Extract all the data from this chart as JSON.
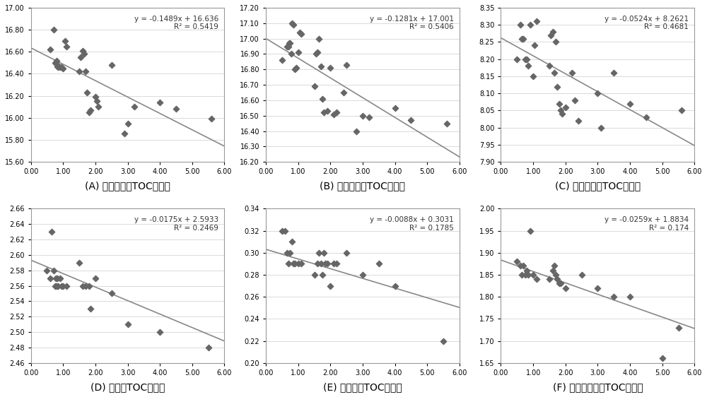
{
  "panels": [
    {
      "label": "(A) 拉梅系数与TOC交汇图",
      "equation": "y = -0.1489x + 16.636",
      "r2": "R² = 0.5419",
      "slope": -0.1489,
      "intercept": 16.636,
      "xlim": [
        0.0,
        6.0
      ],
      "ylim": [
        15.6,
        17.0
      ],
      "yticks": [
        15.6,
        15.8,
        16.0,
        16.2,
        16.4,
        16.6,
        16.8,
        17.0
      ],
      "xticks": [
        0.0,
        1.0,
        2.0,
        3.0,
        4.0,
        5.0,
        6.0
      ],
      "scatter_x": [
        0.6,
        0.7,
        0.75,
        0.78,
        0.8,
        0.82,
        0.85,
        0.87,
        0.9,
        0.95,
        1.0,
        1.05,
        1.1,
        1.5,
        1.55,
        1.6,
        1.65,
        1.7,
        1.75,
        1.8,
        1.85,
        2.0,
        2.05,
        2.1,
        2.5,
        2.9,
        3.0,
        3.2,
        4.0,
        4.5,
        5.6
      ],
      "scatter_y": [
        16.62,
        16.8,
        16.5,
        16.5,
        16.52,
        16.47,
        16.46,
        16.47,
        16.46,
        16.46,
        16.45,
        16.7,
        16.65,
        16.42,
        16.55,
        16.61,
        16.58,
        16.42,
        16.23,
        16.05,
        16.07,
        16.19,
        16.15,
        16.1,
        16.48,
        15.86,
        15.95,
        16.1,
        16.14,
        16.08,
        15.99
      ]
    },
    {
      "label": "(B) 体积模量与TOC交汇图",
      "equation": "y = -0.1281x + 17.001",
      "r2": "R² = 0.5406",
      "slope": -0.1281,
      "intercept": 17.001,
      "xlim": [
        0.0,
        6.0
      ],
      "ylim": [
        16.2,
        17.2
      ],
      "yticks": [
        16.2,
        16.3,
        16.4,
        16.5,
        16.6,
        16.7,
        16.8,
        16.9,
        17.0,
        17.1,
        17.2
      ],
      "xticks": [
        0.0,
        1.0,
        2.0,
        3.0,
        4.0,
        5.0,
        6.0
      ],
      "scatter_x": [
        0.5,
        0.65,
        0.7,
        0.72,
        0.75,
        0.78,
        0.8,
        0.85,
        0.9,
        0.95,
        1.0,
        1.05,
        1.1,
        1.5,
        1.55,
        1.6,
        1.65,
        1.7,
        1.75,
        1.8,
        1.9,
        2.0,
        2.1,
        2.2,
        2.4,
        2.5,
        2.8,
        3.0,
        3.2,
        4.0,
        4.5,
        5.6
      ],
      "scatter_y": [
        16.86,
        16.95,
        16.95,
        16.97,
        16.97,
        16.9,
        17.1,
        17.09,
        16.8,
        16.81,
        16.91,
        17.04,
        17.03,
        16.69,
        16.9,
        16.91,
        17.0,
        16.82,
        16.61,
        16.52,
        16.53,
        16.81,
        16.51,
        16.52,
        16.65,
        16.83,
        16.4,
        16.5,
        16.49,
        16.55,
        16.47,
        16.45
      ]
    },
    {
      "label": "(C) 纵波速度与TOC交汇图",
      "equation": "y = -0.0524x + 8.2621",
      "r2": "R² = 0.4681",
      "slope": -0.0524,
      "intercept": 8.2621,
      "xlim": [
        0.0,
        6.0
      ],
      "ylim": [
        7.9,
        8.35
      ],
      "yticks": [
        7.9,
        7.95,
        8.0,
        8.05,
        8.1,
        8.15,
        8.2,
        8.25,
        8.3,
        8.35
      ],
      "xticks": [
        0.0,
        1.0,
        2.0,
        3.0,
        4.0,
        5.0,
        6.0
      ],
      "scatter_x": [
        0.5,
        0.6,
        0.65,
        0.7,
        0.75,
        0.8,
        0.85,
        0.9,
        1.0,
        1.05,
        1.1,
        1.5,
        1.55,
        1.6,
        1.65,
        1.7,
        1.75,
        1.8,
        1.85,
        1.9,
        2.0,
        2.2,
        2.3,
        2.4,
        3.0,
        3.1,
        3.5,
        4.0,
        4.5,
        5.6
      ],
      "scatter_y": [
        8.2,
        8.3,
        8.26,
        8.26,
        8.2,
        8.2,
        8.18,
        8.3,
        8.15,
        8.24,
        8.31,
        8.18,
        8.27,
        8.28,
        8.16,
        8.25,
        8.12,
        8.07,
        8.05,
        8.04,
        8.06,
        8.16,
        8.08,
        8.02,
        8.1,
        8.0,
        8.16,
        8.07,
        8.03,
        8.05
      ]
    },
    {
      "label": "(D) 密度与TOC交汇图",
      "equation": "y = -0.0175x + 2.5933",
      "r2": "R² = 0.2469",
      "slope": -0.0175,
      "intercept": 2.5933,
      "xlim": [
        0.0,
        6.0
      ],
      "ylim": [
        2.46,
        2.66
      ],
      "yticks": [
        2.46,
        2.48,
        2.5,
        2.52,
        2.54,
        2.56,
        2.58,
        2.6,
        2.62,
        2.64,
        2.66
      ],
      "xticks": [
        0.0,
        1.0,
        2.0,
        3.0,
        4.0,
        5.0,
        6.0
      ],
      "scatter_x": [
        0.5,
        0.6,
        0.65,
        0.7,
        0.75,
        0.78,
        0.8,
        0.82,
        0.85,
        0.9,
        0.95,
        1.0,
        1.1,
        1.5,
        1.6,
        1.7,
        1.8,
        1.85,
        2.0,
        2.5,
        3.0,
        4.0,
        5.5
      ],
      "scatter_y": [
        2.58,
        2.57,
        2.63,
        2.58,
        2.56,
        2.57,
        2.56,
        2.57,
        2.56,
        2.57,
        2.56,
        2.56,
        2.56,
        2.59,
        2.56,
        2.56,
        2.56,
        2.53,
        2.57,
        2.55,
        2.51,
        2.5,
        2.48
      ]
    },
    {
      "label": "(E) 泊松比与TOC交汇图",
      "equation": "y = -0.0088x + 0.3031",
      "r2": "R² = 0.1785",
      "slope": -0.0088,
      "intercept": 0.3031,
      "xlim": [
        0.0,
        6.0
      ],
      "ylim": [
        0.2,
        0.34
      ],
      "yticks": [
        0.2,
        0.22,
        0.24,
        0.26,
        0.28,
        0.3,
        0.32,
        0.34
      ],
      "xticks": [
        0.0,
        1.0,
        2.0,
        3.0,
        4.0,
        5.0,
        6.0
      ],
      "scatter_x": [
        0.5,
        0.6,
        0.65,
        0.7,
        0.75,
        0.8,
        0.85,
        0.9,
        1.0,
        1.1,
        1.5,
        1.6,
        1.65,
        1.7,
        1.75,
        1.8,
        1.85,
        1.9,
        2.0,
        2.1,
        2.2,
        2.5,
        3.0,
        3.5,
        4.0,
        5.5
      ],
      "scatter_y": [
        0.32,
        0.32,
        0.3,
        0.29,
        0.3,
        0.31,
        0.29,
        0.29,
        0.29,
        0.29,
        0.28,
        0.29,
        0.3,
        0.29,
        0.28,
        0.3,
        0.29,
        0.29,
        0.27,
        0.29,
        0.29,
        0.3,
        0.28,
        0.29,
        0.27,
        0.22
      ]
    },
    {
      "label": "(F) 纵横波速比与TOC交汇图",
      "equation": "y = -0.0259x + 1.8834",
      "r2": "R² = 0.174",
      "slope": -0.0259,
      "intercept": 1.8834,
      "xlim": [
        0.0,
        6.0
      ],
      "ylim": [
        1.65,
        2.0
      ],
      "yticks": [
        1.65,
        1.7,
        1.75,
        1.8,
        1.85,
        1.9,
        1.95,
        2.0
      ],
      "xticks": [
        0.0,
        1.0,
        2.0,
        3.0,
        4.0,
        5.0,
        6.0
      ],
      "scatter_x": [
        0.5,
        0.6,
        0.65,
        0.7,
        0.75,
        0.8,
        0.85,
        0.9,
        1.0,
        1.1,
        1.5,
        1.6,
        1.65,
        1.7,
        1.75,
        1.8,
        1.85,
        2.0,
        2.5,
        3.0,
        3.5,
        4.0,
        5.0,
        5.5
      ],
      "scatter_y": [
        1.88,
        1.87,
        1.85,
        1.87,
        1.85,
        1.86,
        1.85,
        1.95,
        1.85,
        1.84,
        1.84,
        1.86,
        1.87,
        1.85,
        1.84,
        1.83,
        1.83,
        1.82,
        1.85,
        1.82,
        1.8,
        1.8,
        1.66,
        1.73
      ]
    }
  ],
  "marker_color": "#666666",
  "marker_size": 6,
  "line_color": "#888888",
  "line_width": 1.2,
  "annotation_fontsize": 7.5,
  "label_fontsize": 10,
  "tick_fontsize": 7,
  "fig_bg_color": "#ffffff",
  "ax_bg_color": "#ffffff",
  "grid_color": "#cccccc"
}
